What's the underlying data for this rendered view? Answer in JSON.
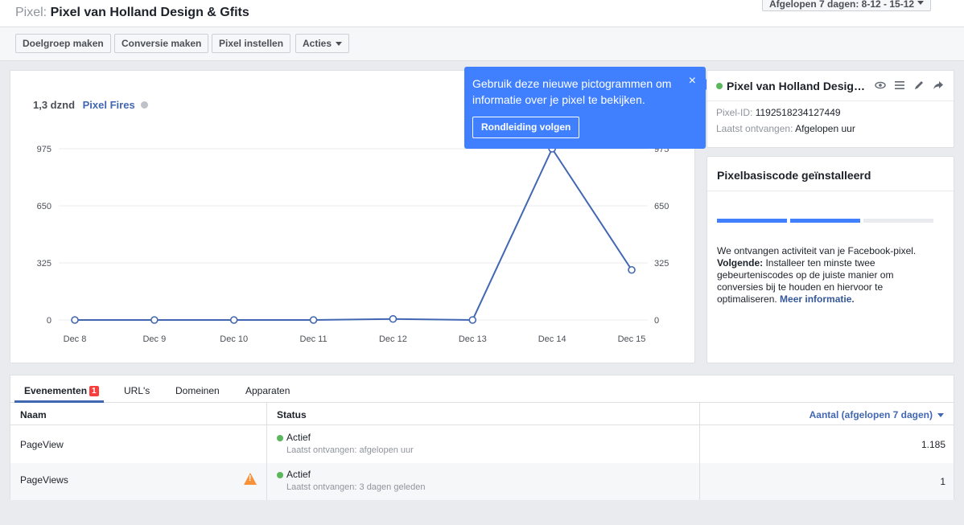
{
  "header": {
    "title_label": "Pixel:",
    "title_value": "Pixel van Holland Design & Gfits",
    "date_range": "Afgelopen 7 dagen: 8-12 - 15-12"
  },
  "toolbar": {
    "create_audience": "Doelgroep maken",
    "create_conversion": "Conversie maken",
    "pixel_settings": "Pixel instellen",
    "actions": "Acties"
  },
  "chart_header": {
    "count": "1,3 dznd",
    "metric": "Pixel Fires"
  },
  "chart_data": {
    "type": "line",
    "categories": [
      "Dec 8",
      "Dec 9",
      "Dec 10",
      "Dec 11",
      "Dec 12",
      "Dec 13",
      "Dec 14",
      "Dec 15"
    ],
    "series": [
      {
        "values": [
          0,
          0,
          0,
          0,
          6,
          0,
          975,
          285
        ]
      }
    ],
    "y_ticks": [
      "0",
      "325",
      "650",
      "975"
    ],
    "ylim": [
      0,
      975
    ],
    "grid": true,
    "color": "#4267b2"
  },
  "tooltip": {
    "message": "Gebruik deze nieuwe pictogrammen om informatie over je pixel te bekijken.",
    "close": "×",
    "button": "Rondleiding volgen",
    "color": "#4080ff"
  },
  "pixel_card": {
    "name": "Pixel van Holland Design & Gfits",
    "id_label": "Pixel-ID:",
    "id_value": "1192518234127449",
    "last_received_label": "Laatst ontvangen:",
    "last_received_value": "Afgelopen uur",
    "icons": [
      "eye-icon",
      "list-icon",
      "pencil-icon",
      "share-icon"
    ]
  },
  "base_code": {
    "heading": "Pixelbasiscode geïnstalleerd",
    "progress_steps_done": 2,
    "progress_steps_total": 3,
    "text1": "We ontvangen activiteit van je Facebook-pixel.",
    "next_label": "Volgende:",
    "next_text": "Installeer ten minste twee gebeurteniscodes op de juiste manier om conversies bij te houden en hiervoor te optimaliseren.",
    "more_link": "Meer informatie."
  },
  "tabs": [
    {
      "label": "Evenementen",
      "badge": "1",
      "active": true
    },
    {
      "label": "URL's"
    },
    {
      "label": "Domeinen"
    },
    {
      "label": "Apparaten"
    }
  ],
  "table": {
    "columns": [
      "Naam",
      "Status",
      "Aantal (afgelopen 7 dagen)"
    ],
    "rows": [
      {
        "name": "PageView",
        "status": "Actief",
        "status_sub": "Laatst ontvangen: afgelopen uur",
        "count": "1.185",
        "warning": false
      },
      {
        "name": "PageViews",
        "status": "Actief",
        "status_sub": "Laatst ontvangen: 3 dagen geleden",
        "count": "1",
        "warning": true
      }
    ]
  }
}
